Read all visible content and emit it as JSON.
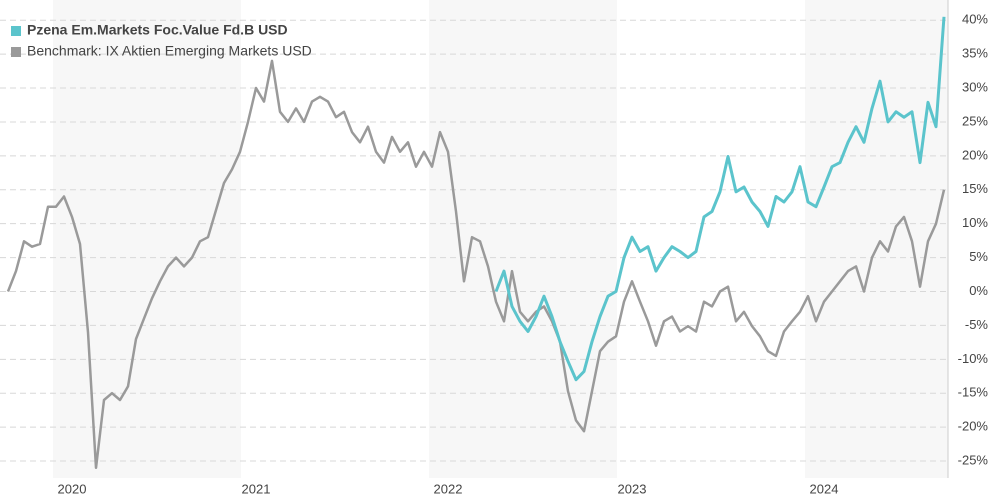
{
  "chart_data": {
    "type": "line",
    "categories": [
      null,
      null,
      null,
      null,
      null,
      null,
      null,
      null,
      "2020",
      null,
      null,
      null,
      null,
      null,
      null,
      null,
      null,
      null,
      null,
      null,
      null,
      null,
      null,
      null,
      null,
      null,
      null,
      null,
      null,
      null,
      null,
      "2021",
      null,
      null,
      null,
      null,
      null,
      null,
      null,
      null,
      null,
      null,
      null,
      null,
      null,
      null,
      null,
      null,
      null,
      null,
      null,
      null,
      null,
      null,
      null,
      "2022",
      null,
      null,
      null,
      null,
      null,
      null,
      null,
      null,
      null,
      null,
      null,
      null,
      null,
      null,
      null,
      null,
      null,
      null,
      null,
      null,
      null,
      null,
      "2023",
      null,
      null,
      null,
      null,
      null,
      null,
      null,
      null,
      null,
      null,
      null,
      null,
      null,
      null,
      null,
      null,
      null,
      null,
      null,
      null,
      null,
      null,
      null,
      "2024",
      null,
      null,
      null,
      null,
      null,
      null,
      null,
      null,
      null,
      null,
      null,
      null,
      null,
      null,
      null
    ],
    "series": [
      {
        "name": "Pzena Em.Markets Foc.Value Fd.B USD",
        "color": "#5bc4cc",
        "values": [
          null,
          null,
          null,
          null,
          null,
          null,
          null,
          null,
          null,
          null,
          null,
          null,
          null,
          null,
          null,
          null,
          null,
          null,
          null,
          null,
          null,
          null,
          null,
          null,
          null,
          null,
          null,
          null,
          null,
          null,
          null,
          null,
          null,
          null,
          null,
          null,
          null,
          null,
          null,
          null,
          null,
          null,
          null,
          null,
          null,
          null,
          null,
          null,
          null,
          null,
          null,
          null,
          null,
          null,
          null,
          null,
          null,
          null,
          null,
          null,
          null,
          0,
          3,
          -2.2,
          -4.4,
          -5.9,
          -3.7,
          -0.7,
          -3.7,
          -7.4,
          -10.3,
          -13,
          -11.8,
          -7.4,
          -3.7,
          -0.7,
          0,
          5,
          8,
          5.9,
          6.6,
          3,
          5,
          6.6,
          5.9,
          5,
          5.9,
          11,
          11.8,
          14.7,
          19.9,
          14.7,
          15.4,
          13.2,
          11.8,
          9.6,
          14,
          13.2,
          14.7,
          18.4,
          13.2,
          12.5,
          15.4,
          18.4,
          19,
          22,
          24.3,
          22,
          27,
          31,
          25,
          26.5,
          25.7,
          26.5,
          19,
          27.9,
          24.3,
          40.5
        ]
      },
      {
        "name": "Benchmark: IX Aktien Emerging Markets USD",
        "color": "#9a9a9a",
        "values": [
          0,
          3,
          7.4,
          6.6,
          7,
          12.5,
          12.5,
          14,
          11,
          7,
          -6,
          -26,
          -16,
          -15,
          -16,
          -14,
          -7,
          -4,
          -1,
          1.5,
          3.7,
          5,
          3.7,
          5,
          7.4,
          8,
          12,
          16,
          18,
          20.6,
          25,
          30,
          28,
          34,
          26.5,
          25,
          27,
          25,
          28,
          28.7,
          28,
          25.7,
          26.5,
          23.5,
          22,
          24.3,
          20.6,
          19,
          22.8,
          20.6,
          22,
          18.4,
          20.6,
          18.4,
          23.5,
          20.6,
          11.8,
          1.5,
          8,
          7.4,
          3.7,
          -1.5,
          -4.4,
          3,
          -3,
          -4.4,
          -3,
          -2.2,
          -4.4,
          -7.4,
          -14.7,
          -19,
          -20.6,
          -14.7,
          -8.8,
          -7.4,
          -6.6,
          -1.5,
          1.5,
          -1.5,
          -4.4,
          -8,
          -4.4,
          -3.7,
          -5.9,
          -5.1,
          -5.9,
          -1.5,
          -2.2,
          0,
          0.7,
          -4.4,
          -3,
          -5.1,
          -6.6,
          -8.8,
          -9.5,
          -5.9,
          -4.4,
          -3,
          -0.7,
          -4.4,
          -1.5,
          0,
          1.5,
          3,
          3.7,
          0,
          5,
          7.4,
          5.9,
          9.6,
          11,
          7.4,
          0.7,
          7.4,
          10,
          15
        ]
      }
    ],
    "ylim": [
      -27.5,
      41.8
    ],
    "yticks": [
      {
        "value": 40,
        "label": "40%"
      },
      {
        "value": 35,
        "label": "35%"
      },
      {
        "value": 30,
        "label": "30%"
      },
      {
        "value": 25,
        "label": "25%"
      },
      {
        "value": 20,
        "label": "20%"
      },
      {
        "value": 15,
        "label": "15%"
      },
      {
        "value": 10,
        "label": "10%"
      },
      {
        "value": 5,
        "label": "5%"
      },
      {
        "value": 0,
        "label": "0%"
      },
      {
        "value": -5,
        "label": "-5%"
      },
      {
        "value": -10,
        "label": "-10%"
      },
      {
        "value": -15,
        "label": "-15%"
      },
      {
        "value": -20,
        "label": "-20%"
      },
      {
        "value": -25,
        "label": "-25%"
      }
    ],
    "grid": true
  }
}
